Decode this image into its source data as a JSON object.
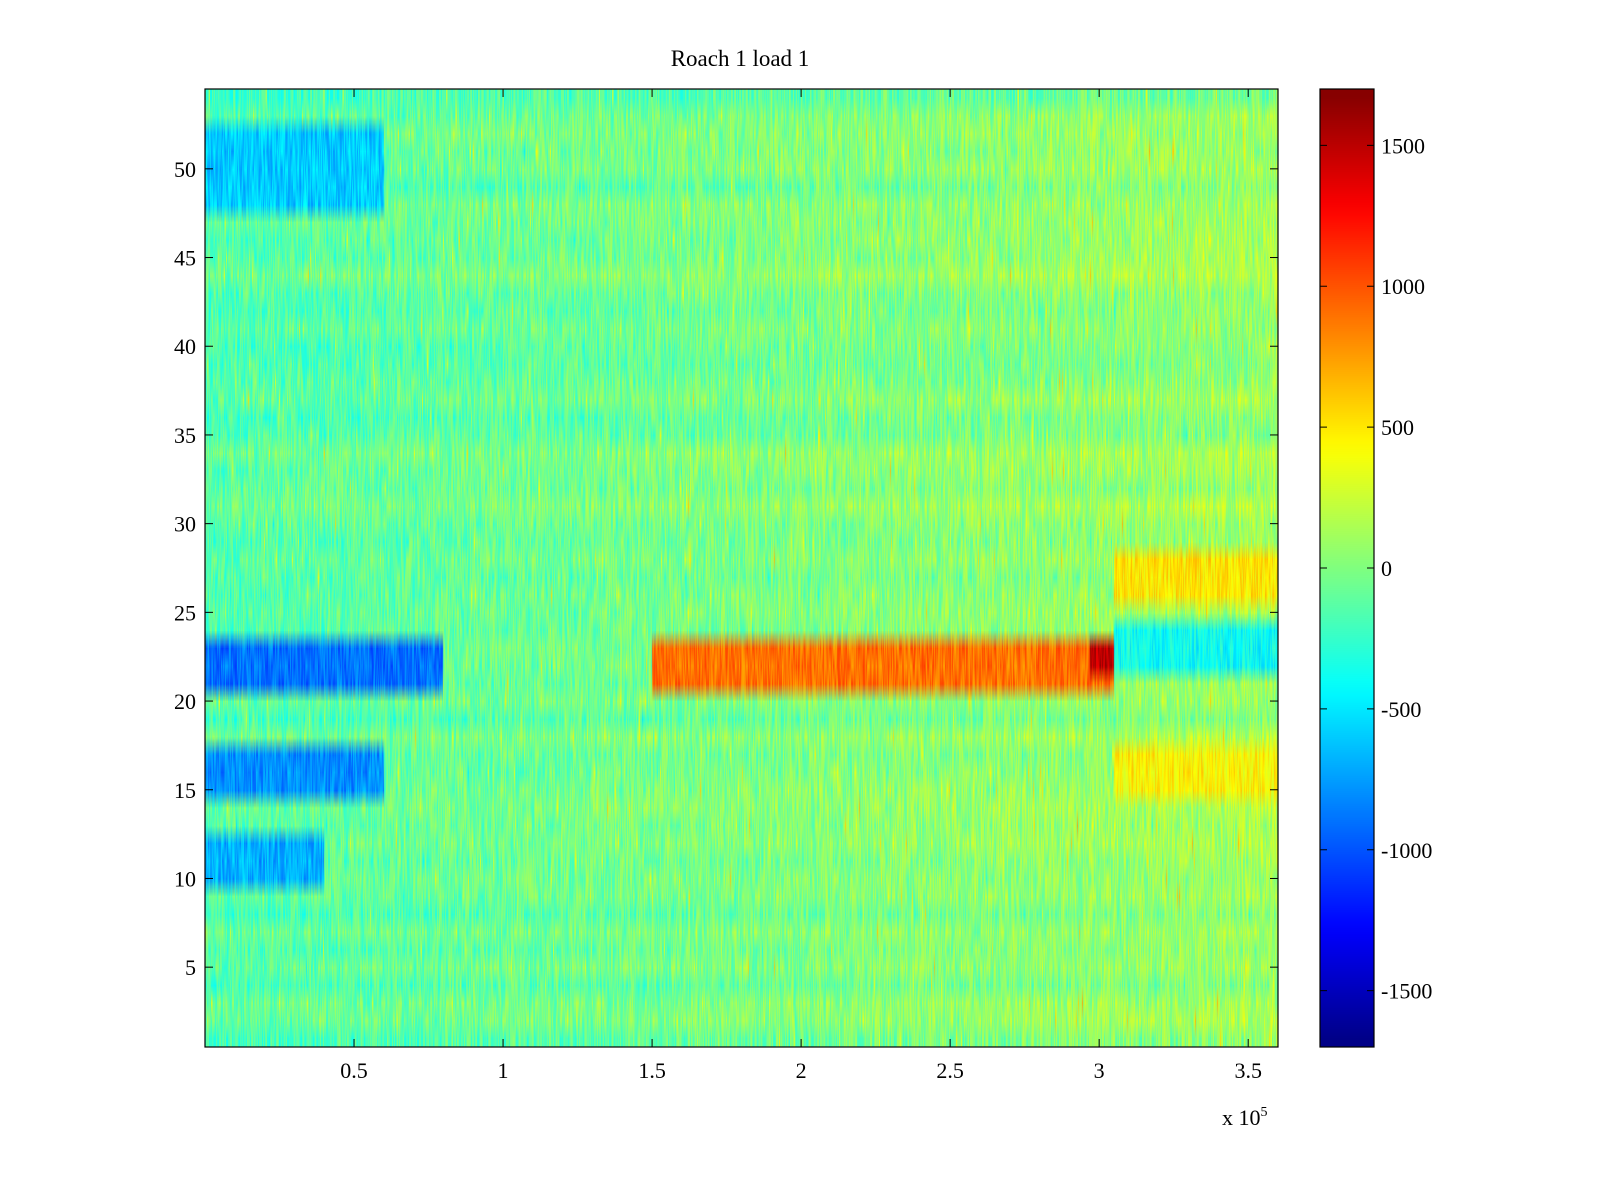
{
  "chart_data": {
    "type": "heatmap",
    "title": "Roach 1 load 1",
    "xlabel": "",
    "ylabel": "",
    "x_range": [
      0,
      360000
    ],
    "y_range": [
      0.5,
      54.5
    ],
    "rows": 54,
    "x_ticks": [
      {
        "value": 50000,
        "label": "0.5"
      },
      {
        "value": 100000,
        "label": "1"
      },
      {
        "value": 150000,
        "label": "1.5"
      },
      {
        "value": 200000,
        "label": "2"
      },
      {
        "value": 250000,
        "label": "2.5"
      },
      {
        "value": 300000,
        "label": "3"
      },
      {
        "value": 350000,
        "label": "3.5"
      }
    ],
    "x_multiplier_base": "x 10",
    "x_multiplier_exp": "5",
    "y_ticks": [
      {
        "value": 5,
        "label": "5"
      },
      {
        "value": 10,
        "label": "10"
      },
      {
        "value": 15,
        "label": "15"
      },
      {
        "value": 20,
        "label": "20"
      },
      {
        "value": 25,
        "label": "25"
      },
      {
        "value": 30,
        "label": "30"
      },
      {
        "value": 35,
        "label": "35"
      },
      {
        "value": 40,
        "label": "40"
      },
      {
        "value": 45,
        "label": "45"
      },
      {
        "value": 50,
        "label": "50"
      }
    ],
    "colorbar": {
      "colormap": "jet",
      "range": [
        -1700,
        1700
      ],
      "ticks": [
        {
          "value": 1500,
          "label": "1500"
        },
        {
          "value": 1000,
          "label": "1000"
        },
        {
          "value": 500,
          "label": "500"
        },
        {
          "value": 0,
          "label": "0"
        },
        {
          "value": -500,
          "label": "-500"
        },
        {
          "value": -1000,
          "label": "-1000"
        },
        {
          "value": -1500,
          "label": "-1500"
        }
      ]
    },
    "features": [
      {
        "desc": "strong negative band, early time",
        "rows": [
          21,
          23
        ],
        "x": [
          0,
          80000
        ],
        "value": -900
      },
      {
        "desc": "negative band, early time",
        "rows": [
          15,
          17
        ],
        "x": [
          0,
          60000
        ],
        "value": -800
      },
      {
        "desc": "negative band, early time",
        "rows": [
          10,
          12
        ],
        "x": [
          0,
          40000
        ],
        "value": -700
      },
      {
        "desc": "negative band, early time",
        "rows": [
          48,
          52
        ],
        "x": [
          0,
          60000
        ],
        "value": -600
      },
      {
        "desc": "positive band rising to peak",
        "rows": [
          21,
          23
        ],
        "x": [
          150000,
          305000
        ],
        "value": 900
      },
      {
        "desc": "peak hot spot",
        "rows": [
          22,
          23
        ],
        "x": [
          297000,
          305000
        ],
        "value": 1500
      },
      {
        "desc": "positive band after step",
        "rows": [
          26,
          28
        ],
        "x": [
          305000,
          360000
        ],
        "value": 500
      },
      {
        "desc": "positive band late time",
        "rows": [
          15,
          17
        ],
        "x": [
          305000,
          360000
        ],
        "value": 450
      },
      {
        "desc": "negative band after step",
        "rows": [
          22,
          24
        ],
        "x": [
          305000,
          360000
        ],
        "value": -400
      }
    ],
    "background_value_range": [
      -300,
      300
    ],
    "grid": false
  }
}
